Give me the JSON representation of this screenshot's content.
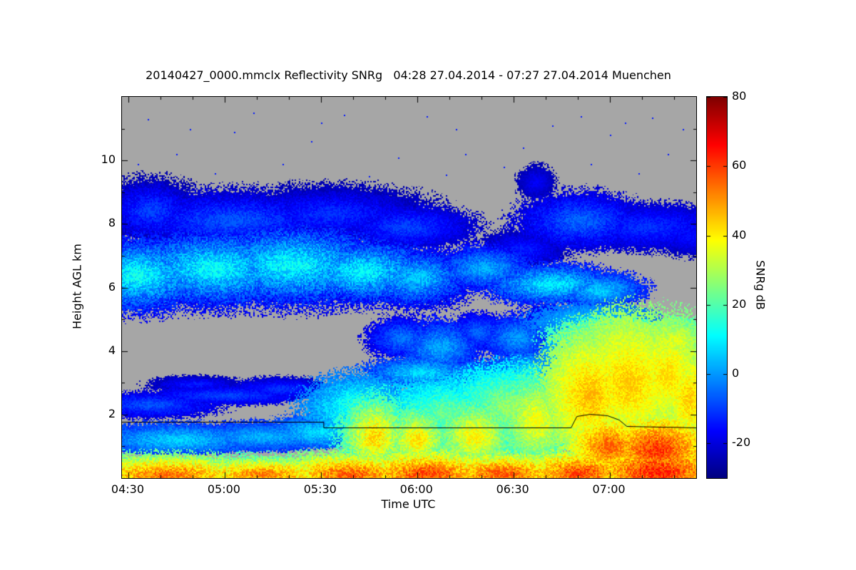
{
  "title": "20140427_0000.mmclx Reflectivity SNRg   04:28 27.04.2014 - 07:27 27.04.2014 Muenchen",
  "chart_data": {
    "type": "heatmap",
    "xlabel": "Time UTC",
    "ylabel": "Height AGL km",
    "colorbar_label": "SNRg dB",
    "colormap": "jet",
    "no_data_color": "#a6a6a6",
    "x_range_hours": [
      4.4667,
      7.45
    ],
    "y_range_km": [
      0,
      12
    ],
    "value_range_db": [
      -30,
      80
    ],
    "x_ticks": {
      "hours": [
        4.5,
        5.0,
        5.5,
        6.0,
        6.5,
        7.0
      ],
      "labels": [
        "04:30",
        "05:00",
        "05:30",
        "06:00",
        "06:30",
        "07:00"
      ]
    },
    "y_ticks": {
      "values": [
        2,
        4,
        6,
        8,
        10
      ],
      "labels": [
        "2",
        "4",
        "6",
        "8",
        "10"
      ]
    },
    "colorbar_ticks": {
      "values": [
        80,
        60,
        40,
        20,
        0,
        -20
      ],
      "labels": [
        "80",
        "60",
        "40",
        "20",
        "0",
        "-20"
      ]
    },
    "blob_format": [
      "t_hours",
      "h_km",
      "t_radius_hours",
      "h_radius_km",
      "snr_db_core",
      "falloff_db_per_radius"
    ],
    "blobs": [
      [
        4.55,
        6.4,
        0.32,
        1.0,
        15,
        26
      ],
      [
        4.95,
        6.6,
        0.45,
        1.05,
        14,
        26
      ],
      [
        5.35,
        6.7,
        0.45,
        1.1,
        14,
        26
      ],
      [
        5.72,
        6.5,
        0.35,
        0.9,
        13,
        26
      ],
      [
        6.0,
        6.3,
        0.25,
        0.8,
        8,
        22
      ],
      [
        4.62,
        8.4,
        0.22,
        0.85,
        -8,
        14
      ],
      [
        5.05,
        8.1,
        0.5,
        0.8,
        -6,
        14
      ],
      [
        5.55,
        8.3,
        0.45,
        0.75,
        -10,
        12
      ],
      [
        5.95,
        7.9,
        0.3,
        0.6,
        -8,
        12
      ],
      [
        6.35,
        6.6,
        0.22,
        0.6,
        5,
        18
      ],
      [
        6.7,
        6.1,
        0.3,
        0.55,
        12,
        22
      ],
      [
        6.95,
        5.9,
        0.2,
        0.5,
        8,
        18
      ],
      [
        6.55,
        7.2,
        0.2,
        0.5,
        -12,
        10
      ],
      [
        6.62,
        9.3,
        0.08,
        0.45,
        -16,
        7
      ],
      [
        6.85,
        8.1,
        0.28,
        0.75,
        -4,
        14
      ],
      [
        7.2,
        7.9,
        0.35,
        0.6,
        -10,
        10
      ],
      [
        7.42,
        7.6,
        0.15,
        0.5,
        -14,
        8
      ],
      [
        5.92,
        4.4,
        0.15,
        0.55,
        -2,
        14
      ],
      [
        6.12,
        4.1,
        0.18,
        0.75,
        4,
        16
      ],
      [
        6.32,
        4.6,
        0.12,
        0.5,
        -4,
        12
      ],
      [
        6.52,
        4.4,
        0.15,
        0.6,
        2,
        14
      ],
      [
        6.68,
        4.7,
        0.12,
        0.7,
        -4,
        12
      ],
      [
        6.02,
        3.3,
        0.25,
        0.45,
        10,
        18
      ],
      [
        6.35,
        3.2,
        0.25,
        0.45,
        8,
        16
      ],
      [
        6.6,
        3.4,
        0.2,
        0.5,
        12,
        18
      ],
      [
        4.62,
        2.3,
        0.3,
        0.35,
        -6,
        12
      ],
      [
        5.0,
        2.6,
        0.35,
        0.25,
        -8,
        10
      ],
      [
        5.3,
        2.8,
        0.25,
        0.3,
        -10,
        10
      ],
      [
        4.85,
        2.95,
        0.2,
        0.22,
        -12,
        10
      ],
      [
        4.75,
        1.2,
        0.4,
        0.45,
        8,
        16
      ],
      [
        5.2,
        1.3,
        0.35,
        0.4,
        5,
        14
      ],
      [
        5.5,
        1.45,
        0.25,
        0.45,
        10,
        16
      ],
      [
        4.7,
        0.1,
        0.45,
        0.55,
        58,
        30
      ],
      [
        5.2,
        0.1,
        0.4,
        0.5,
        56,
        30
      ],
      [
        5.65,
        0.1,
        0.35,
        0.6,
        60,
        30
      ],
      [
        6.05,
        0.12,
        0.35,
        0.65,
        62,
        30
      ],
      [
        6.45,
        0.12,
        0.35,
        0.6,
        60,
        30
      ],
      [
        6.85,
        0.15,
        0.3,
        0.65,
        62,
        30
      ],
      [
        7.25,
        0.2,
        0.35,
        0.85,
        66,
        30
      ],
      [
        5.78,
        1.3,
        0.16,
        1.1,
        46,
        26
      ],
      [
        5.7,
        2.2,
        0.25,
        0.9,
        18,
        18
      ],
      [
        6.0,
        1.2,
        0.15,
        0.9,
        44,
        24
      ],
      [
        6.15,
        2.0,
        0.3,
        1.0,
        25,
        18
      ],
      [
        6.3,
        1.3,
        0.18,
        1.0,
        42,
        22
      ],
      [
        6.5,
        2.2,
        0.3,
        1.1,
        30,
        18
      ],
      [
        6.62,
        1.8,
        0.18,
        1.3,
        40,
        20
      ],
      [
        6.78,
        3.5,
        0.12,
        1.4,
        15,
        14
      ],
      [
        6.9,
        2.6,
        0.22,
        1.7,
        48,
        18
      ],
      [
        7.1,
        3.0,
        0.25,
        1.8,
        46,
        16
      ],
      [
        7.3,
        3.2,
        0.2,
        1.6,
        44,
        16
      ],
      [
        7.42,
        2.5,
        0.15,
        1.5,
        46,
        18
      ],
      [
        7.0,
        1.0,
        0.2,
        0.9,
        58,
        24
      ],
      [
        7.25,
        0.9,
        0.25,
        0.9,
        64,
        26
      ],
      [
        7.05,
        4.4,
        0.3,
        0.6,
        36,
        16
      ],
      [
        7.35,
        4.3,
        0.15,
        0.7,
        38,
        16
      ],
      [
        6.95,
        4.9,
        0.3,
        0.5,
        10,
        12
      ]
    ],
    "speck_format": [
      "t_hours",
      "h_km"
    ],
    "speck_db": -14,
    "specks": [
      [
        5.05,
        10.9
      ],
      [
        5.5,
        11.2
      ],
      [
        4.75,
        10.2
      ],
      [
        6.2,
        11.0
      ],
      [
        6.55,
        10.4
      ],
      [
        7.0,
        10.8
      ],
      [
        5.9,
        10.1
      ],
      [
        6.9,
        9.9
      ],
      [
        4.95,
        9.6
      ],
      [
        7.3,
        10.2
      ],
      [
        5.3,
        9.9
      ],
      [
        6.05,
        11.4
      ],
      [
        6.7,
        11.1
      ],
      [
        4.6,
        11.3
      ],
      [
        7.15,
        9.6
      ],
      [
        5.75,
        9.5
      ],
      [
        6.45,
        9.8
      ],
      [
        5.15,
        11.5
      ],
      [
        6.85,
        11.4
      ],
      [
        7.38,
        11.0
      ],
      [
        4.55,
        9.9
      ],
      [
        5.45,
        10.6
      ],
      [
        6.25,
        10.2
      ],
      [
        7.08,
        11.2
      ],
      [
        5.62,
        11.45
      ],
      [
        6.15,
        9.55
      ],
      [
        4.82,
        11.0
      ],
      [
        7.22,
        11.35
      ]
    ],
    "boundary_line_km": [
      [
        4.4667,
        1.78
      ],
      [
        5.515,
        1.78
      ],
      [
        5.515,
        1.6
      ],
      [
        6.8,
        1.6
      ],
      [
        6.83,
        1.95
      ],
      [
        6.9,
        2.02
      ],
      [
        6.99,
        1.98
      ],
      [
        7.05,
        1.85
      ],
      [
        7.09,
        1.63
      ],
      [
        7.45,
        1.6
      ]
    ]
  }
}
